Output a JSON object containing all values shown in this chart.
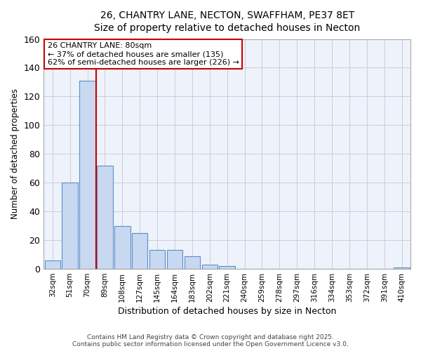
{
  "title_line1": "26, CHANTRY LANE, NECTON, SWAFFHAM, PE37 8ET",
  "title_line2": "Size of property relative to detached houses in Necton",
  "xlabel": "Distribution of detached houses by size in Necton",
  "ylabel": "Number of detached properties",
  "categories": [
    "32sqm",
    "51sqm",
    "70sqm",
    "89sqm",
    "108sqm",
    "127sqm",
    "145sqm",
    "164sqm",
    "183sqm",
    "202sqm",
    "221sqm",
    "240sqm",
    "259sqm",
    "278sqm",
    "297sqm",
    "316sqm",
    "334sqm",
    "353sqm",
    "372sqm",
    "391sqm",
    "410sqm"
  ],
  "values": [
    6,
    60,
    131,
    72,
    30,
    25,
    13,
    13,
    9,
    3,
    2,
    0,
    0,
    0,
    0,
    0,
    0,
    0,
    0,
    0,
    1
  ],
  "bar_color": "#c8d8f0",
  "bar_edge_color": "#5a8fcc",
  "grid_color": "#ccccdd",
  "bg_color": "#ffffff",
  "plot_bg_color": "#eef2fa",
  "red_line_x": 2.5,
  "annotation_text": "26 CHANTRY LANE: 80sqm\n← 37% of detached houses are smaller (135)\n62% of semi-detached houses are larger (226) →",
  "annotation_box_color": "#ffffff",
  "annotation_border_color": "#cc0000",
  "footer_line1": "Contains HM Land Registry data © Crown copyright and database right 2025.",
  "footer_line2": "Contains public sector information licensed under the Open Government Licence v3.0.",
  "ylim": [
    0,
    160
  ],
  "yticks": [
    0,
    20,
    40,
    60,
    80,
    100,
    120,
    140,
    160
  ]
}
